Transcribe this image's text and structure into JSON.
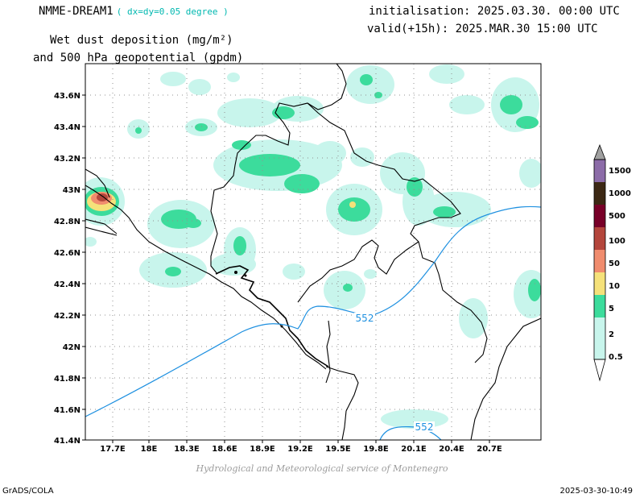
{
  "header": {
    "model": "NMME-DREAM1",
    "resolution": "( dx=dy=0.05 degree )",
    "initialisation": "initialisation: 2025.03.30. 00:00 UTC",
    "valid": "valid(+15h): 2025.MAR.30 15:00 UTC",
    "variable_line1": "Wet dust deposition (mg/m²)",
    "variable_line2": "and 500 hPa geopotential (gpdm)"
  },
  "map": {
    "lon_ticks": [
      "17.7E",
      "18E",
      "18.3E",
      "18.6E",
      "18.9E",
      "19.2E",
      "19.5E",
      "19.8E",
      "20.1E",
      "20.4E",
      "20.7E"
    ],
    "lat_ticks": [
      "43.6N",
      "43.4N",
      "43.2N",
      "43N",
      "42.8N",
      "42.6N",
      "42.4N",
      "42.2N",
      "42N",
      "41.8N",
      "41.6N",
      "41.4N"
    ],
    "contour_labels": [
      "552",
      "552"
    ],
    "contour_color": "#1e90e0"
  },
  "legend": {
    "levels": [
      "1500",
      "1000",
      "500",
      "100",
      "50",
      "10",
      "5",
      "2",
      "0.5"
    ],
    "colors": [
      "#a0a0a0",
      "#8c6ca8",
      "#3c2814",
      "#780028",
      "#b4463c",
      "#f08c6e",
      "#f5e17a",
      "#3cdc9c",
      "#c8f5ec"
    ]
  },
  "footer": {
    "credit": "Hydrological and Meteorological service of Montenegro",
    "left": "GrADS/COLA",
    "right": "2025-03-30-10:49"
  }
}
